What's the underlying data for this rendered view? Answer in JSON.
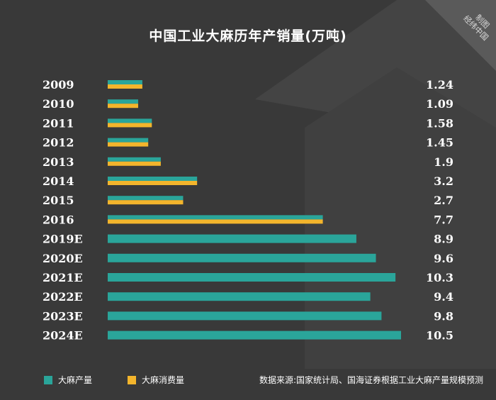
{
  "chart_data": {
    "type": "bar",
    "orientation": "horizontal",
    "title": "中国工业大麻历年产销量(万吨)",
    "categories": [
      "2009",
      "2010",
      "2011",
      "2012",
      "2013",
      "2014",
      "2015",
      "2016",
      "2019E",
      "2020E",
      "2021E",
      "2022E",
      "2023E",
      "2024E"
    ],
    "value_labels": [
      "1.24",
      "1.09",
      "1.58",
      "1.45",
      "1.9",
      "3.2",
      "2.7",
      "7.7",
      "8.9",
      "9.6",
      "10.3",
      "9.4",
      "9.8",
      "10.5"
    ],
    "series": [
      {
        "name": "大麻产量",
        "color": "#2aa59a",
        "values": [
          1.24,
          1.09,
          1.58,
          1.45,
          1.9,
          3.2,
          2.7,
          7.7,
          8.9,
          9.6,
          10.3,
          9.4,
          9.8,
          10.5
        ]
      },
      {
        "name": "大麻消费量",
        "color": "#f3b52c",
        "values": [
          1.24,
          1.09,
          1.58,
          1.45,
          1.9,
          3.2,
          2.7,
          7.7,
          null,
          null,
          null,
          null,
          null,
          null
        ]
      }
    ],
    "xlim": [
      0,
      10.5
    ],
    "legend_position": "bottom-left",
    "source": "数据来源:国家统计局、国海证券根据工业大麻产量规模预测",
    "credit": [
      "制图",
      "经纬中国"
    ]
  }
}
